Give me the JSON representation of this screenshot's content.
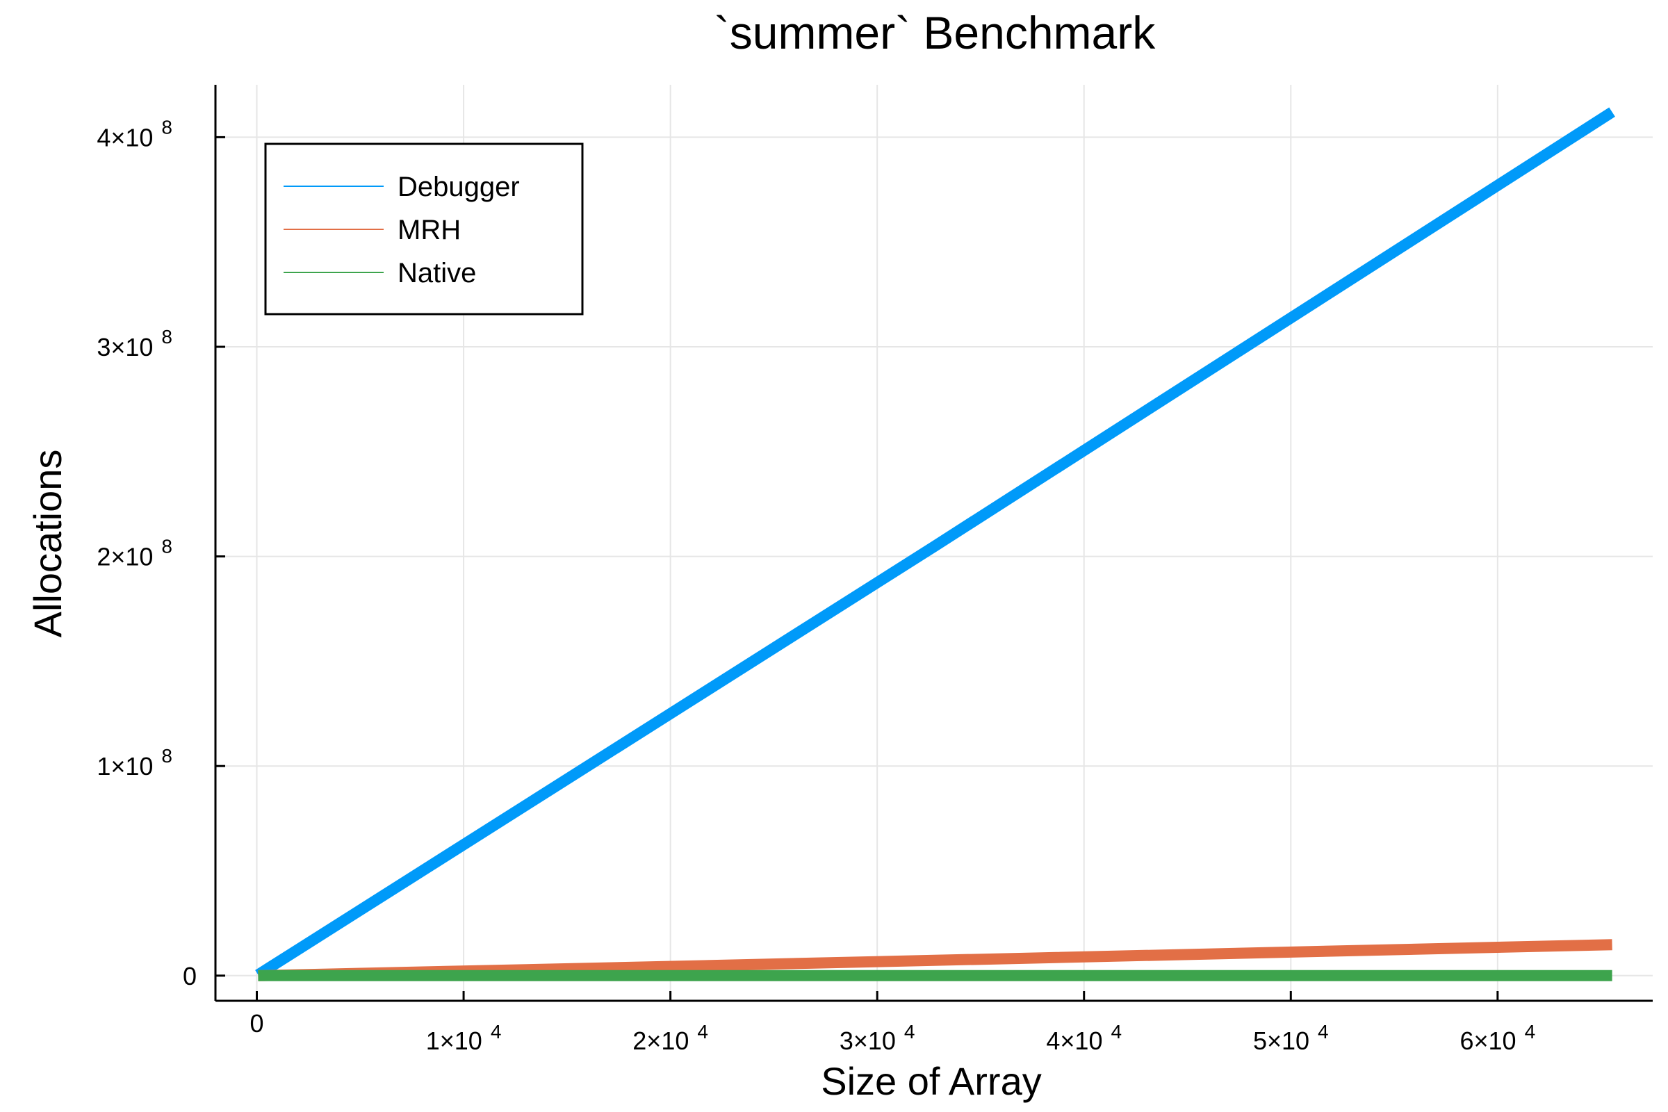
{
  "chart_data": {
    "type": "line",
    "title": "`summer` Benchmark",
    "xlabel": "Size of Array",
    "ylabel": "Allocations",
    "xlim": [
      -2000,
      67500
    ],
    "ylim": [
      -12000000,
      425000000
    ],
    "x_ticks": [
      {
        "value": 0,
        "mantissa": "0",
        "exponent": ""
      },
      {
        "value": 10000,
        "mantissa": "1×10",
        "exponent": "4"
      },
      {
        "value": 20000,
        "mantissa": "2×10",
        "exponent": "4"
      },
      {
        "value": 30000,
        "mantissa": "3×10",
        "exponent": "4"
      },
      {
        "value": 40000,
        "mantissa": "4×10",
        "exponent": "4"
      },
      {
        "value": 50000,
        "mantissa": "5×10",
        "exponent": "4"
      },
      {
        "value": 60000,
        "mantissa": "6×10",
        "exponent": "4"
      }
    ],
    "y_ticks": [
      {
        "value": 0,
        "mantissa": "0",
        "exponent": ""
      },
      {
        "value": 100000000,
        "mantissa": "1×10",
        "exponent": "8"
      },
      {
        "value": 200000000,
        "mantissa": "2×10",
        "exponent": "8"
      },
      {
        "value": 300000000,
        "mantissa": "3×10",
        "exponent": "8"
      },
      {
        "value": 400000000,
        "mantissa": "4×10",
        "exponent": "8"
      }
    ],
    "grid": true,
    "legend_position": "top-left",
    "series": [
      {
        "name": "Debugger",
        "color": "#009af9",
        "x": [
          64,
          2048,
          8192,
          16384,
          32768,
          65536
        ],
        "y": [
          400000,
          12800000,
          51200000,
          102400000,
          204800000,
          412000000
        ]
      },
      {
        "name": "MRH",
        "color": "#e26f46",
        "x": [
          64,
          2048,
          8192,
          16384,
          32768,
          65536
        ],
        "y": [
          15000,
          450000,
          1800000,
          3600000,
          7300000,
          14800000
        ]
      },
      {
        "name": "Native",
        "color": "#3da44d",
        "x": [
          64,
          2048,
          8192,
          16384,
          32768,
          65536
        ],
        "y": [
          0,
          0,
          0,
          0,
          0,
          0
        ]
      }
    ]
  }
}
